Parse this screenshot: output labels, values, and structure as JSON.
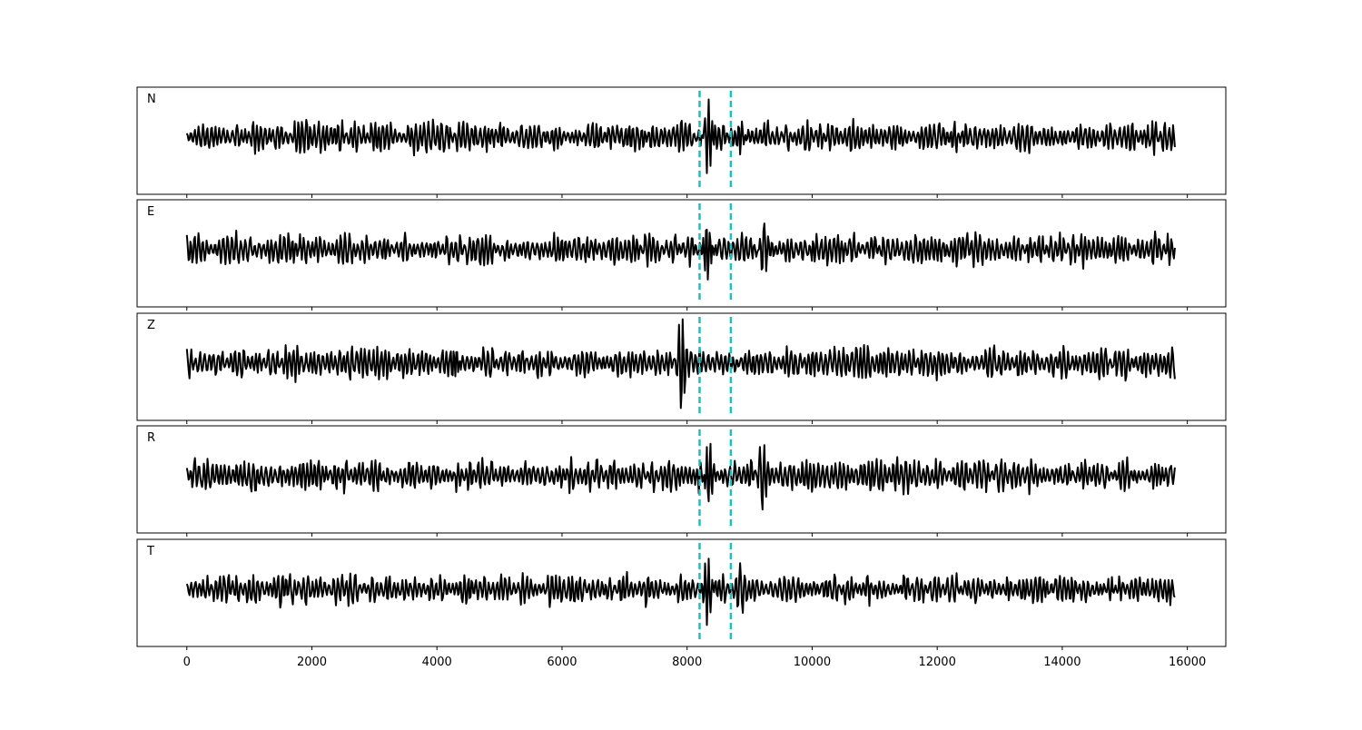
{
  "chart_data": {
    "type": "line",
    "title": "",
    "xlabel": "",
    "ylabel": "",
    "xlim": [
      -795,
      16615
    ],
    "x_ticks": [
      0,
      2000,
      4000,
      6000,
      8000,
      10000,
      12000,
      14000,
      16000
    ],
    "x_tick_labels": [
      "0",
      "2000",
      "4000",
      "6000",
      "8000",
      "10000",
      "12000",
      "14000",
      "16000"
    ],
    "grid": false,
    "sample_count": 15800,
    "trace_color": "#000000",
    "marker_color": "#00cccc",
    "markers": [
      {
        "x": 8200,
        "style": "dashed"
      },
      {
        "x": 8700,
        "style": "dashed"
      }
    ],
    "series": [
      {
        "name": "N",
        "noise_amplitude": 0.32,
        "events": [
          {
            "x": 8330,
            "amplitude": 1.0
          },
          {
            "x": 8850,
            "amplitude": 0.6
          }
        ]
      },
      {
        "name": "E",
        "noise_amplitude": 0.32,
        "events": [
          {
            "x": 8340,
            "amplitude": 1.0
          },
          {
            "x": 9220,
            "amplitude": 0.6
          }
        ]
      },
      {
        "name": "Z",
        "noise_amplitude": 0.33,
        "events": [
          {
            "x": 7900,
            "amplitude": 1.0
          },
          {
            "x": 4300,
            "amplitude": 0.6
          }
        ]
      },
      {
        "name": "R",
        "noise_amplitude": 0.33,
        "events": [
          {
            "x": 8340,
            "amplitude": 1.0
          },
          {
            "x": 9220,
            "amplitude": 0.6
          }
        ]
      },
      {
        "name": "T",
        "noise_amplitude": 0.32,
        "events": [
          {
            "x": 8330,
            "amplitude": 1.0
          },
          {
            "x": 8850,
            "amplitude": 0.55
          }
        ]
      }
    ]
  }
}
